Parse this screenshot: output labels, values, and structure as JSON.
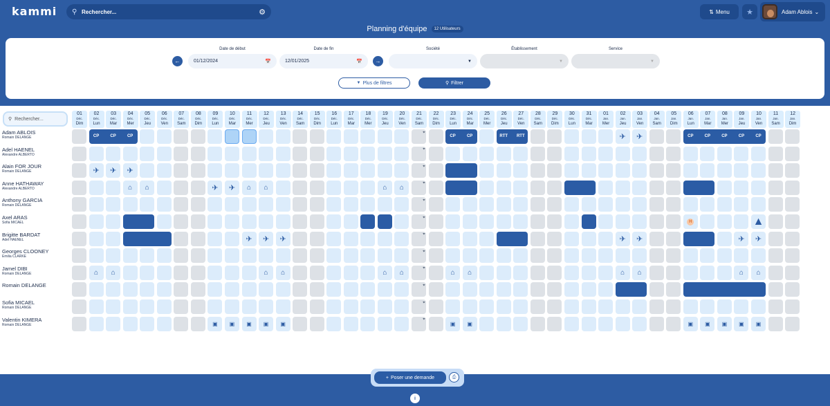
{
  "app": {
    "logo": "kammi"
  },
  "topbar": {
    "search_placeholder": "Rechercher...",
    "menu_label": "Menu",
    "user_name": "Adam Ablois",
    "icons": [
      "search-icon",
      "gear-icon",
      "menu-icon",
      "star-icon",
      "chevron-down-icon"
    ]
  },
  "header": {
    "title": "Planning d'équipe",
    "user_count": "12 Utilisateurs"
  },
  "filters": {
    "start_label": "Date de début",
    "start_value": "01/12/2024",
    "end_label": "Date de fin",
    "end_value": "12/01/2025",
    "societe_label": "Société",
    "societe_value": "",
    "etablissement_label": "Établissement",
    "etablissement_value": "",
    "service_label": "Service",
    "service_value": "",
    "more_label": "Plus de filtres",
    "filter_label": "Filtrer"
  },
  "planning": {
    "search_placeholder": "Rechercher...",
    "days": [
      {
        "n": "01",
        "m": "Déc.",
        "d": "Dim"
      },
      {
        "n": "02",
        "m": "Déc.",
        "d": "Lun"
      },
      {
        "n": "03",
        "m": "Déc.",
        "d": "Mar"
      },
      {
        "n": "04",
        "m": "Déc.",
        "d": "Mer"
      },
      {
        "n": "05",
        "m": "Déc.",
        "d": "Jeu"
      },
      {
        "n": "06",
        "m": "Déc.",
        "d": "Ven"
      },
      {
        "n": "07",
        "m": "Déc.",
        "d": "Sam"
      },
      {
        "n": "08",
        "m": "Déc.",
        "d": "Dim"
      },
      {
        "n": "09",
        "m": "Déc.",
        "d": "Lun"
      },
      {
        "n": "10",
        "m": "Déc.",
        "d": "Mar"
      },
      {
        "n": "11",
        "m": "Déc.",
        "d": "Mer"
      },
      {
        "n": "12",
        "m": "Déc.",
        "d": "Jeu"
      },
      {
        "n": "13",
        "m": "Déc.",
        "d": "Ven"
      },
      {
        "n": "14",
        "m": "Déc.",
        "d": "Sam"
      },
      {
        "n": "15",
        "m": "Déc.",
        "d": "Dim"
      },
      {
        "n": "16",
        "m": "Déc.",
        "d": "Lun"
      },
      {
        "n": "17",
        "m": "Déc.",
        "d": "Mar"
      },
      {
        "n": "18",
        "m": "Déc.",
        "d": "Mer"
      },
      {
        "n": "19",
        "m": "Déc.",
        "d": "Jeu"
      },
      {
        "n": "20",
        "m": "Déc.",
        "d": "Ven"
      },
      {
        "n": "21",
        "m": "Déc.",
        "d": "Sam"
      },
      {
        "n": "22",
        "m": "Déc.",
        "d": "Dim"
      },
      {
        "n": "23",
        "m": "Déc.",
        "d": "Lun"
      },
      {
        "n": "24",
        "m": "Déc.",
        "d": "Mar"
      },
      {
        "n": "25",
        "m": "Déc.",
        "d": "Mer"
      },
      {
        "n": "26",
        "m": "Déc.",
        "d": "Jeu"
      },
      {
        "n": "27",
        "m": "Déc.",
        "d": "Ven"
      },
      {
        "n": "28",
        "m": "Déc.",
        "d": "Sam"
      },
      {
        "n": "29",
        "m": "Déc.",
        "d": "Dim"
      },
      {
        "n": "30",
        "m": "Déc.",
        "d": "Lun"
      },
      {
        "n": "31",
        "m": "Déc.",
        "d": "Mar"
      },
      {
        "n": "01",
        "m": "Jan.",
        "d": "Mer"
      },
      {
        "n": "02",
        "m": "Jan.",
        "d": "Jeu"
      },
      {
        "n": "03",
        "m": "Jan.",
        "d": "Ven"
      },
      {
        "n": "04",
        "m": "Jan.",
        "d": "Sam"
      },
      {
        "n": "05",
        "m": "Jan.",
        "d": "Dim"
      },
      {
        "n": "06",
        "m": "Jan.",
        "d": "Lun"
      },
      {
        "n": "07",
        "m": "Jan.",
        "d": "Mar"
      },
      {
        "n": "08",
        "m": "Jan.",
        "d": "Mer"
      },
      {
        "n": "09",
        "m": "Jan.",
        "d": "Jeu"
      },
      {
        "n": "10",
        "m": "Jan.",
        "d": "Ven"
      },
      {
        "n": "11",
        "m": "Jan.",
        "d": "Sam"
      },
      {
        "n": "12",
        "m": "Jan.",
        "d": "Dim"
      }
    ],
    "users": [
      {
        "name": "Adam ABLOIS",
        "manager": "Romain DELANGE",
        "blocks": [
          {
            "s": 1,
            "e": 3,
            "labels": [
              "CP",
              "CP",
              "CP"
            ]
          },
          {
            "s": 22,
            "e": 23,
            "labels": [
              "CP",
              "CP"
            ]
          },
          {
            "s": 25,
            "e": 26,
            "labels": [
              "RTT",
              "RTT"
            ]
          },
          {
            "s": 36,
            "e": 40,
            "labels": [
              "CP",
              "CP",
              "CP",
              "CP",
              "CP"
            ]
          }
        ],
        "selected": [
          9,
          10
        ],
        "icons": [
          {
            "i": 32,
            "t": "plane"
          },
          {
            "i": 33,
            "t": "plane"
          }
        ]
      },
      {
        "name": "Adel HAENEL",
        "manager": "Alexandre ALBERTO",
        "blocks": [],
        "selected": [],
        "icons": []
      },
      {
        "name": "Alain FOR JOUR",
        "manager": "Romain DELANGE",
        "blocks": [
          {
            "s": 22,
            "e": 23,
            "labels": []
          }
        ],
        "selected": [],
        "icons": [
          {
            "i": 1,
            "t": "plane"
          },
          {
            "i": 2,
            "t": "plane"
          },
          {
            "i": 3,
            "t": "plane"
          }
        ]
      },
      {
        "name": "Anne HATHAWAY",
        "manager": "Alexandre ALBERTO",
        "blocks": [
          {
            "s": 22,
            "e": 23,
            "labels": []
          },
          {
            "s": 29,
            "e": 30,
            "labels": []
          },
          {
            "s": 36,
            "e": 37,
            "labels": []
          }
        ],
        "selected": [],
        "icons": [
          {
            "i": 3,
            "t": "home"
          },
          {
            "i": 4,
            "t": "home"
          },
          {
            "i": 8,
            "t": "plane"
          },
          {
            "i": 9,
            "t": "plane"
          },
          {
            "i": 10,
            "t": "home"
          },
          {
            "i": 11,
            "t": "home"
          },
          {
            "i": 18,
            "t": "home"
          },
          {
            "i": 19,
            "t": "home"
          }
        ]
      },
      {
        "name": "Anthony GARCIA",
        "manager": "Romain DELANGE",
        "blocks": [],
        "selected": [],
        "icons": []
      },
      {
        "name": "Axel ARAS",
        "manager": "Sofia MICAEL",
        "blocks": [
          {
            "s": 3,
            "e": 4,
            "labels": []
          },
          {
            "s": 17,
            "e": 17,
            "labels": []
          },
          {
            "s": 18,
            "e": 18,
            "labels": []
          },
          {
            "s": 30,
            "e": 30,
            "labels": []
          }
        ],
        "selected": [],
        "icons": [
          {
            "i": 36,
            "t": "hbadge"
          },
          {
            "i": 40,
            "t": "grad"
          }
        ]
      },
      {
        "name": "Brigitte BARDAT",
        "manager": "Adel HAENEL",
        "blocks": [
          {
            "s": 3,
            "e": 5,
            "labels": []
          },
          {
            "s": 25,
            "e": 26,
            "labels": []
          },
          {
            "s": 36,
            "e": 37,
            "labels": []
          }
        ],
        "selected": [],
        "icons": [
          {
            "i": 10,
            "t": "plane"
          },
          {
            "i": 11,
            "t": "plane"
          },
          {
            "i": 12,
            "t": "plane"
          },
          {
            "i": 32,
            "t": "plane"
          },
          {
            "i": 33,
            "t": "plane"
          },
          {
            "i": 39,
            "t": "plane"
          },
          {
            "i": 40,
            "t": "plane"
          }
        ]
      },
      {
        "name": "Georges CLOONEY",
        "manager": "Emilia CLARKE",
        "blocks": [],
        "selected": [],
        "icons": []
      },
      {
        "name": "Jamel DIBI",
        "manager": "Romain DELANGE",
        "blocks": [],
        "selected": [],
        "icons": [
          {
            "i": 1,
            "t": "home"
          },
          {
            "i": 2,
            "t": "home"
          },
          {
            "i": 11,
            "t": "home"
          },
          {
            "i": 12,
            "t": "home"
          },
          {
            "i": 18,
            "t": "home"
          },
          {
            "i": 19,
            "t": "home"
          },
          {
            "i": 22,
            "t": "home"
          },
          {
            "i": 23,
            "t": "home"
          },
          {
            "i": 32,
            "t": "home"
          },
          {
            "i": 33,
            "t": "home"
          },
          {
            "i": 39,
            "t": "home"
          },
          {
            "i": 40,
            "t": "home"
          }
        ]
      },
      {
        "name": "Romain DELANGE",
        "manager": "",
        "blocks": [
          {
            "s": 32,
            "e": 33,
            "labels": []
          },
          {
            "s": 36,
            "e": 40,
            "labels": []
          }
        ],
        "selected": [],
        "icons": []
      },
      {
        "name": "Sofia MICAEL",
        "manager": "Romain DELANGE",
        "blocks": [],
        "selected": [],
        "icons": []
      },
      {
        "name": "Valentin KIMERA",
        "manager": "Romain DELANGE",
        "blocks": [],
        "selected": [],
        "icons": [
          {
            "i": 8,
            "t": "book"
          },
          {
            "i": 9,
            "t": "book"
          },
          {
            "i": 10,
            "t": "book"
          },
          {
            "i": 11,
            "t": "book"
          },
          {
            "i": 12,
            "t": "book"
          },
          {
            "i": 22,
            "t": "book"
          },
          {
            "i": 23,
            "t": "book"
          },
          {
            "i": 36,
            "t": "book"
          },
          {
            "i": 37,
            "t": "book"
          },
          {
            "i": 38,
            "t": "book"
          },
          {
            "i": 39,
            "t": "book"
          },
          {
            "i": 40,
            "t": "book"
          }
        ]
      }
    ]
  },
  "bottom": {
    "request_label": "Poser une demande"
  },
  "colors": {
    "brand": "#2d5ca3",
    "absence": "#2b5ca5",
    "weekday_cell": "#dcecfb",
    "weekend_cell": "#dde1e6"
  }
}
